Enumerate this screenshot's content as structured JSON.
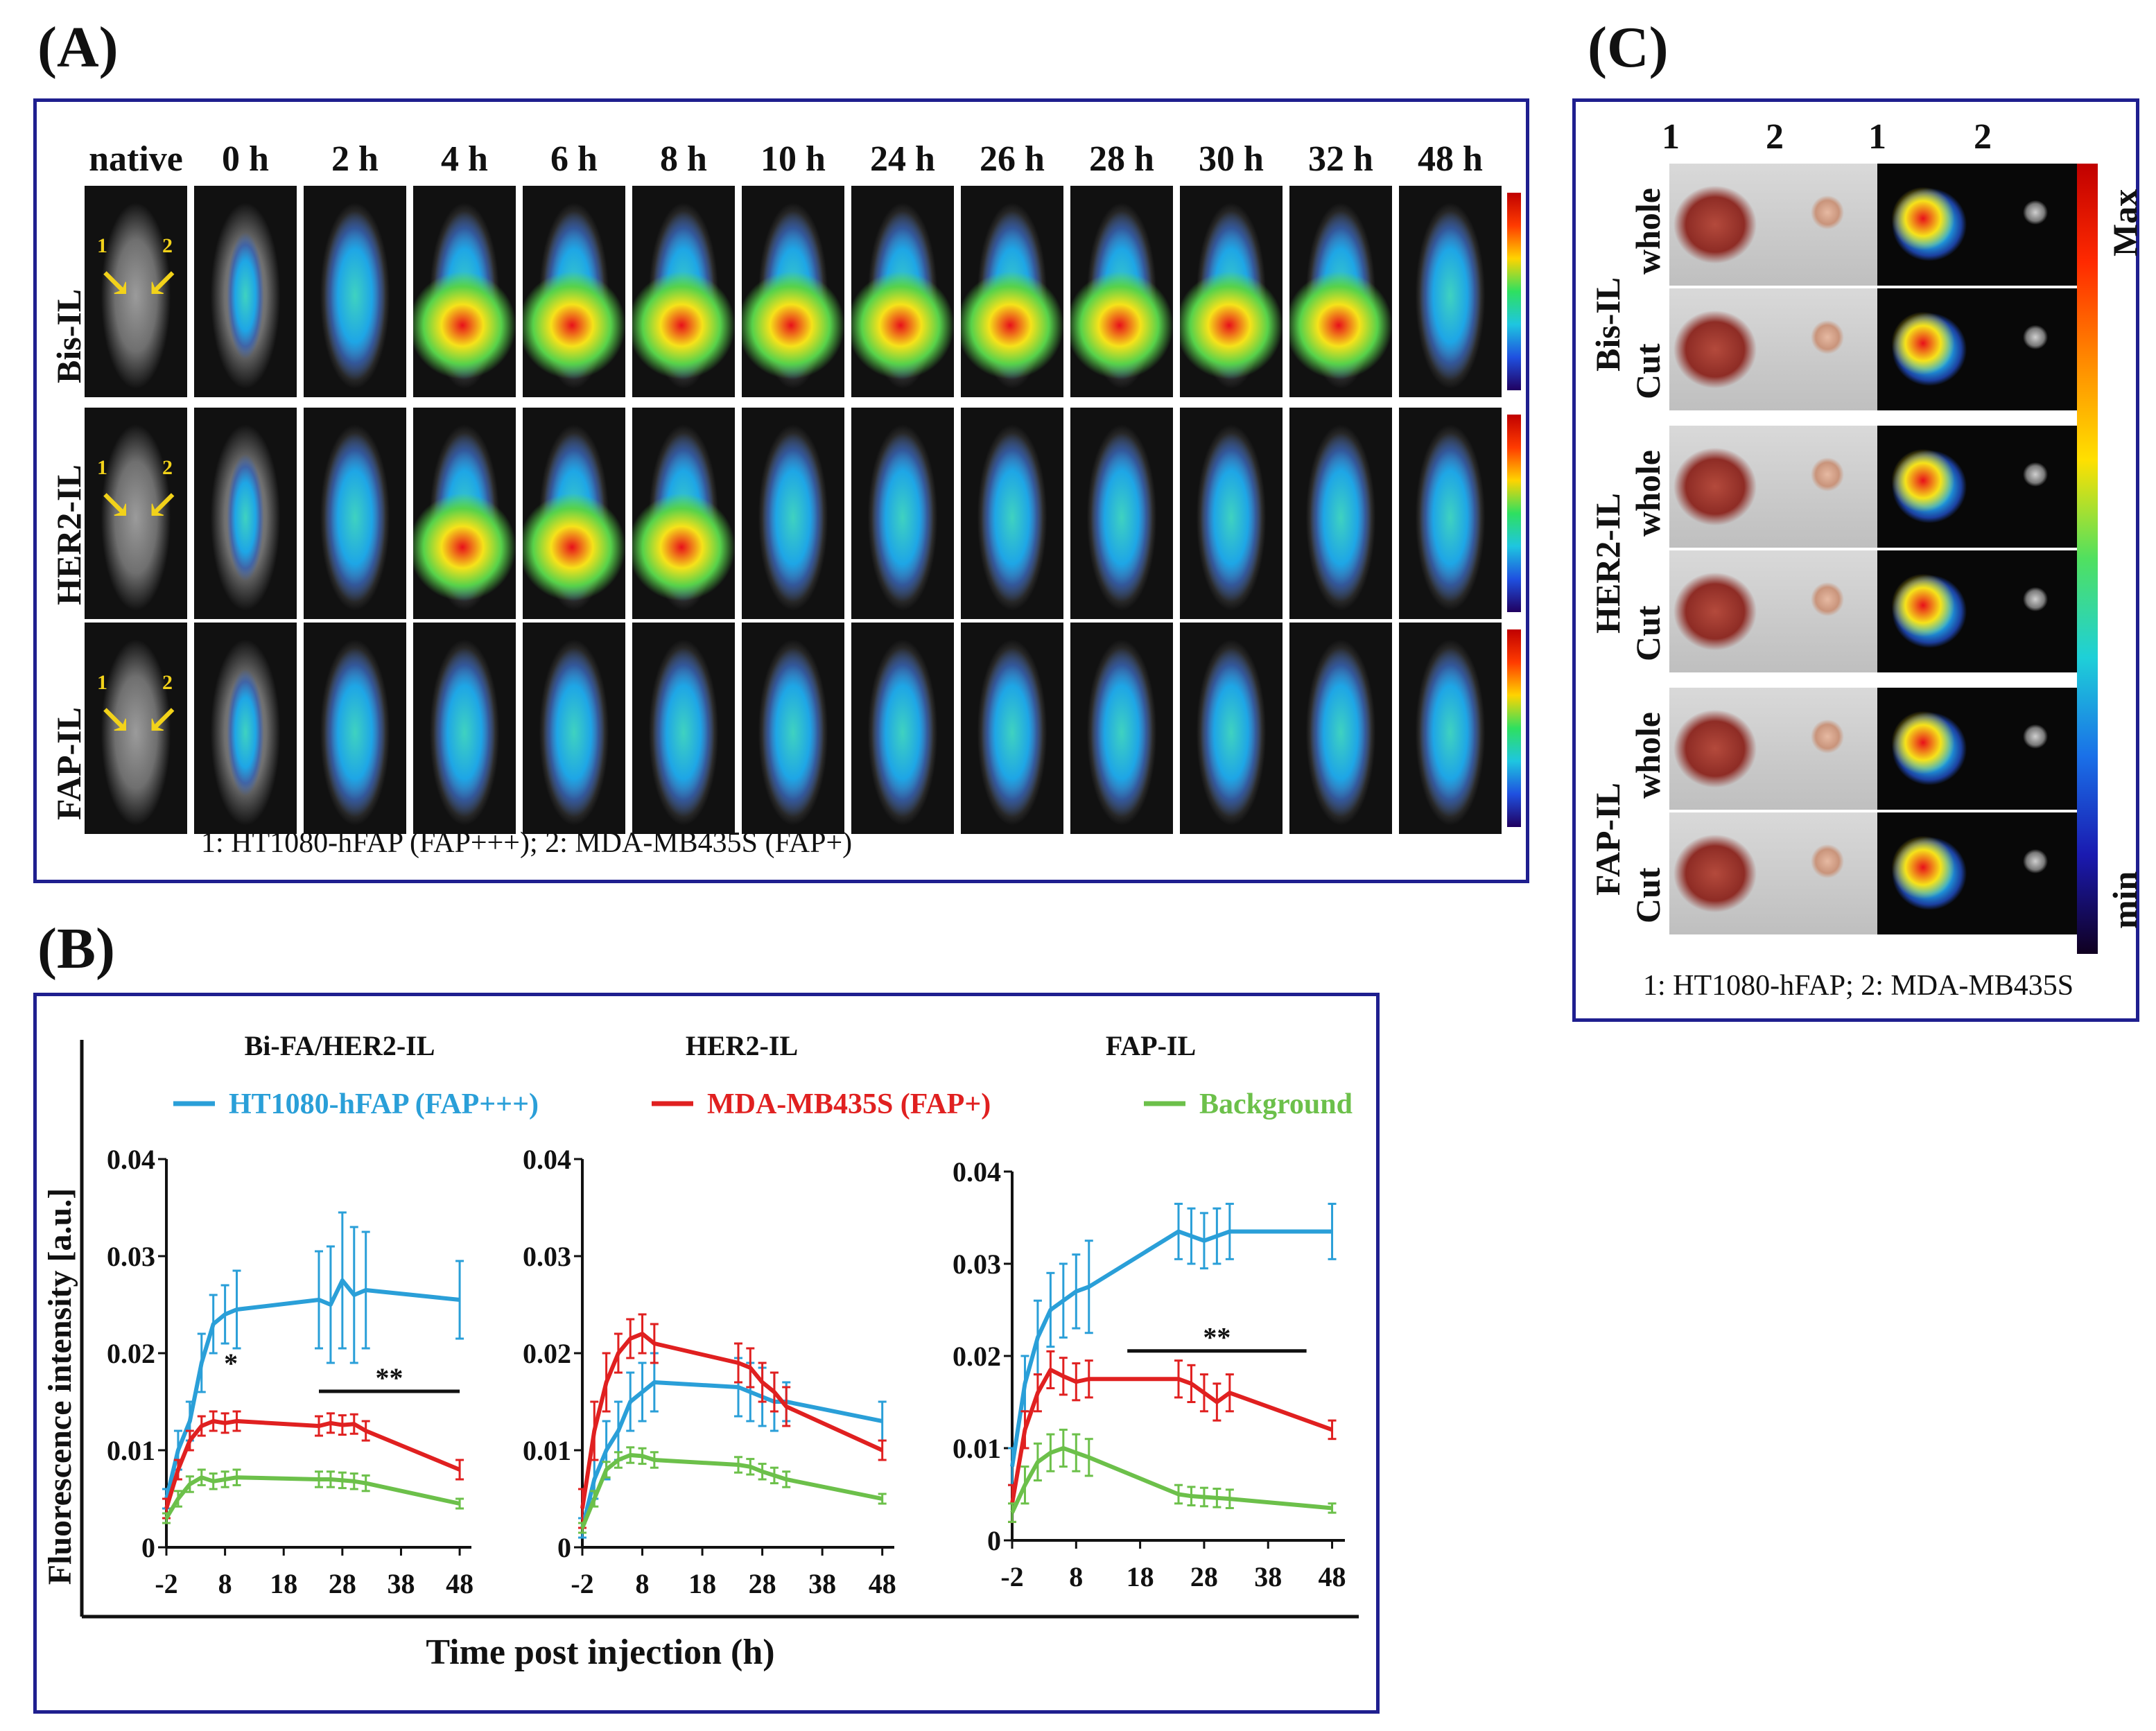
{
  "panel_a": {
    "label": "(A)",
    "times": [
      "native",
      "0 h",
      "2 h",
      "4 h",
      "6 h",
      "8 h",
      "10 h",
      "24 h",
      "26 h",
      "28 h",
      "30 h",
      "32 h",
      "48 h"
    ],
    "rows": [
      "Bis-IL",
      "HER2-IL",
      "FAP-IL"
    ],
    "caption": "1: HT1080-hFAP  (FAP+++);  2: MDA-MB435S (FAP+)",
    "tumor_marks": [
      "1",
      "2"
    ]
  },
  "panel_b": {
    "label": "(B)",
    "titles": [
      "Bi-FA/HER2-IL",
      "HER2-IL",
      "FAP-IL"
    ],
    "ylabel": "Fluorescence intensity  [a.u.]",
    "xlabel": "Time post injection  (h)",
    "legend": [
      {
        "label": "HT1080-hFAP (FAP+++)",
        "color": "#2a9fd8"
      },
      {
        "label": "MDA-MB435S (FAP+)",
        "color": "#e02020"
      },
      {
        "label": "Background",
        "color": "#6cc04a"
      }
    ],
    "sig": {
      "single": "*",
      "double": "**"
    }
  },
  "panel_c": {
    "label": "(C)",
    "cols": [
      "1",
      "2",
      "1",
      "2"
    ],
    "groups": [
      "Bis-IL",
      "HER2-IL",
      "FAP-IL"
    ],
    "sub": [
      "whole",
      "Cut"
    ],
    "scale_max": "Max",
    "scale_min": "min",
    "caption": "1: HT1080-hFAP;  2: MDA-MB435S"
  },
  "chart_data": [
    {
      "type": "line",
      "title": "Bi-FA/HER2-IL",
      "xlabel": "Time post injection (h)",
      "ylabel": "Fluorescence intensity [a.u.]",
      "xticks": [
        -2,
        8,
        18,
        28,
        38,
        48
      ],
      "yticks": [
        0,
        0.01,
        0.02,
        0.03,
        0.04
      ],
      "xlim": [
        -2,
        50
      ],
      "ylim": [
        0,
        0.04
      ],
      "series": [
        {
          "name": "HT1080-hFAP (FAP+++)",
          "color": "#2a9fd8",
          "x": [
            -2,
            0,
            2,
            4,
            6,
            8,
            10,
            24,
            26,
            28,
            30,
            32,
            48
          ],
          "y": [
            0.005,
            0.01,
            0.013,
            0.019,
            0.023,
            0.024,
            0.0245,
            0.0255,
            0.025,
            0.0275,
            0.026,
            0.0265,
            0.0255
          ],
          "err": [
            0.001,
            0.002,
            0.002,
            0.003,
            0.003,
            0.003,
            0.004,
            0.005,
            0.006,
            0.007,
            0.007,
            0.006,
            0.004
          ]
        },
        {
          "name": "MDA-MB435S (FAP+)",
          "color": "#e02020",
          "x": [
            -2,
            0,
            2,
            4,
            6,
            8,
            10,
            24,
            26,
            28,
            30,
            32,
            48
          ],
          "y": [
            0.004,
            0.008,
            0.011,
            0.0125,
            0.013,
            0.0128,
            0.013,
            0.0125,
            0.0128,
            0.0126,
            0.0127,
            0.012,
            0.008
          ],
          "err": [
            0.001,
            0.001,
            0.001,
            0.001,
            0.001,
            0.001,
            0.001,
            0.001,
            0.001,
            0.001,
            0.001,
            0.001,
            0.001
          ]
        },
        {
          "name": "Background",
          "color": "#6cc04a",
          "x": [
            -2,
            0,
            2,
            4,
            6,
            8,
            10,
            24,
            26,
            28,
            30,
            32,
            48
          ],
          "y": [
            0.003,
            0.005,
            0.0065,
            0.0072,
            0.0068,
            0.007,
            0.0072,
            0.007,
            0.007,
            0.0069,
            0.0068,
            0.0066,
            0.0045
          ],
          "err": [
            0.0005,
            0.0008,
            0.0008,
            0.0008,
            0.0008,
            0.0008,
            0.0008,
            0.0008,
            0.0008,
            0.0008,
            0.0008,
            0.0008,
            0.0005
          ]
        }
      ],
      "annotations": [
        {
          "text": "*",
          "x": 9,
          "y": 0.018
        },
        {
          "text": "**",
          "x": 36,
          "y": 0.0165,
          "bar": [
            24,
            48
          ]
        }
      ]
    },
    {
      "type": "line",
      "title": "HER2-IL",
      "xlabel": "Time post injection (h)",
      "ylabel": "Fluorescence intensity [a.u.]",
      "xticks": [
        -2,
        8,
        18,
        28,
        38,
        48
      ],
      "yticks": [
        0,
        0.01,
        0.02,
        0.03,
        0.04
      ],
      "xlim": [
        -2,
        50
      ],
      "ylim": [
        0,
        0.04
      ],
      "series": [
        {
          "name": "HT1080-hFAP (FAP+++)",
          "color": "#2a9fd8",
          "x": [
            -2,
            0,
            2,
            4,
            6,
            8,
            10,
            24,
            26,
            28,
            30,
            32,
            48
          ],
          "y": [
            0.002,
            0.007,
            0.01,
            0.012,
            0.015,
            0.016,
            0.017,
            0.0165,
            0.016,
            0.0155,
            0.015,
            0.015,
            0.013
          ],
          "err": [
            0.001,
            0.002,
            0.003,
            0.003,
            0.003,
            0.003,
            0.003,
            0.003,
            0.003,
            0.003,
            0.003,
            0.002,
            0.002
          ]
        },
        {
          "name": "MDA-MB435S (FAP+)",
          "color": "#e02020",
          "x": [
            -2,
            0,
            2,
            4,
            6,
            8,
            10,
            24,
            26,
            28,
            30,
            32,
            48
          ],
          "y": [
            0.004,
            0.012,
            0.017,
            0.02,
            0.0215,
            0.022,
            0.021,
            0.019,
            0.0185,
            0.017,
            0.016,
            0.0145,
            0.01
          ],
          "err": [
            0.002,
            0.003,
            0.003,
            0.002,
            0.002,
            0.002,
            0.002,
            0.002,
            0.002,
            0.002,
            0.002,
            0.002,
            0.001
          ]
        },
        {
          "name": "Background",
          "color": "#6cc04a",
          "x": [
            -2,
            0,
            2,
            4,
            6,
            8,
            10,
            24,
            26,
            28,
            30,
            32,
            48
          ],
          "y": [
            0.002,
            0.005,
            0.008,
            0.009,
            0.0095,
            0.0094,
            0.009,
            0.0085,
            0.0083,
            0.0078,
            0.0074,
            0.007,
            0.005
          ],
          "err": [
            0.0005,
            0.0008,
            0.0008,
            0.0008,
            0.0008,
            0.0008,
            0.0008,
            0.0008,
            0.0008,
            0.0008,
            0.0008,
            0.0008,
            0.0005
          ]
        }
      ]
    },
    {
      "type": "line",
      "title": "FAP-IL",
      "xlabel": "Time post injection (h)",
      "ylabel": "Fluorescence intensity [a.u.]",
      "xticks": [
        -2,
        8,
        18,
        28,
        38,
        48
      ],
      "yticks": [
        0,
        0.01,
        0.02,
        0.03,
        0.04
      ],
      "xlim": [
        -2,
        50
      ],
      "ylim": [
        0,
        0.04
      ],
      "series": [
        {
          "name": "HT1080-hFAP (FAP+++)",
          "color": "#2a9fd8",
          "x": [
            -2,
            0,
            2,
            4,
            6,
            8,
            10,
            24,
            26,
            28,
            30,
            32,
            48
          ],
          "y": [
            0.008,
            0.017,
            0.022,
            0.025,
            0.026,
            0.027,
            0.0275,
            0.0335,
            0.033,
            0.0325,
            0.033,
            0.0335,
            0.0335
          ],
          "err": [
            0.002,
            0.003,
            0.004,
            0.004,
            0.004,
            0.004,
            0.005,
            0.003,
            0.003,
            0.003,
            0.003,
            0.003,
            0.003
          ]
        },
        {
          "name": "MDA-MB435S (FAP+)",
          "color": "#e02020",
          "x": [
            -2,
            0,
            2,
            4,
            6,
            8,
            10,
            24,
            26,
            28,
            30,
            32,
            48
          ],
          "y": [
            0.004,
            0.012,
            0.016,
            0.0185,
            0.0178,
            0.0172,
            0.0175,
            0.0175,
            0.017,
            0.016,
            0.015,
            0.016,
            0.012
          ],
          "err": [
            0.002,
            0.002,
            0.002,
            0.002,
            0.002,
            0.002,
            0.002,
            0.002,
            0.002,
            0.002,
            0.002,
            0.002,
            0.001
          ]
        },
        {
          "name": "Background",
          "color": "#6cc04a",
          "x": [
            -2,
            0,
            2,
            4,
            6,
            8,
            10,
            24,
            26,
            28,
            30,
            32,
            48
          ],
          "y": [
            0.003,
            0.006,
            0.0085,
            0.0095,
            0.01,
            0.0095,
            0.009,
            0.005,
            0.0048,
            0.0047,
            0.0046,
            0.0045,
            0.0035
          ],
          "err": [
            0.001,
            0.002,
            0.002,
            0.002,
            0.002,
            0.002,
            0.002,
            0.001,
            0.001,
            0.001,
            0.001,
            0.001,
            0.0005
          ]
        }
      ],
      "annotations": [
        {
          "text": "**",
          "x": 30,
          "y": 0.021,
          "bar": [
            16,
            44
          ]
        }
      ]
    }
  ]
}
